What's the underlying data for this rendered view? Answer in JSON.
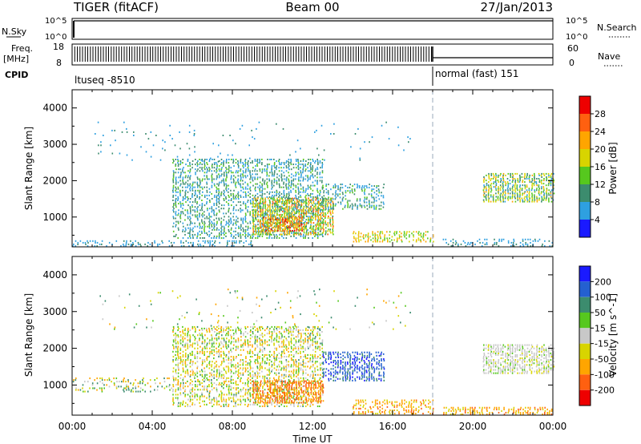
{
  "header": {
    "radar": "TIGER (fitACF)",
    "beam": "Beam 00",
    "date": "27/Jan/2013"
  },
  "top_panels": {
    "nsky_label": "N.Sky",
    "nsky_ticks": [
      "10^5",
      "10^0"
    ],
    "nsearch_label": "N.Search",
    "nsearch_ticks": [
      "10^5",
      "10^0"
    ],
    "freq_label": "Freq.",
    "freq_unit": "[MHz]",
    "freq_ticks": [
      "18",
      "8"
    ],
    "nave_label": "Nave",
    "nave_ticks": [
      "60",
      "0"
    ],
    "cpid_label": "CPID",
    "cpid_segments": [
      {
        "label": "ltuseq -8510",
        "start_hour": 0,
        "end_hour": 18.0
      },
      {
        "label": "normal (fast) 151",
        "start_hour": 18.0,
        "end_hour": 24
      }
    ]
  },
  "x_axis": {
    "label": "Time UT",
    "ticks": [
      "00:00",
      "04:00",
      "08:00",
      "12:00",
      "16:00",
      "20:00",
      "00:00"
    ],
    "range_hours": [
      0,
      24
    ]
  },
  "y_axis": {
    "label": "Slant Range [km]",
    "ticks": [
      "1000",
      "2000",
      "3000",
      "4000"
    ],
    "range_km": [
      180,
      4500
    ]
  },
  "power_colorbar": {
    "label": "Power [dB]",
    "ticks": [
      "4",
      "8",
      "12",
      "16",
      "20",
      "24",
      "28"
    ],
    "colors": [
      "#1a1aff",
      "#2ea0e0",
      "#3c8c6e",
      "#56c81e",
      "#d8d400",
      "#ffa500",
      "#ff6010",
      "#ee0000"
    ]
  },
  "velocity_colorbar": {
    "label": "Velocity [m s^-1]",
    "ticks": [
      "200",
      "100",
      "50",
      "15",
      "-15",
      "-50",
      "-100",
      "-200"
    ],
    "colors": [
      "#1a1aff",
      "#2460d0",
      "#3c8c6e",
      "#56c81e",
      "#c8c8c8",
      "#d8d400",
      "#ffa500",
      "#ff6010",
      "#ee0000"
    ]
  },
  "chart_data": [
    {
      "type": "heatmap",
      "name": "Power",
      "x_unit": "hours UT",
      "y_unit": "km",
      "scatter_regions": [
        {
          "t": [
            5.0,
            12.5
          ],
          "r": [
            400,
            2600
          ],
          "density": 0.55,
          "level": [
            4,
            14
          ]
        },
        {
          "t": [
            9.0,
            13.0
          ],
          "r": [
            500,
            1500
          ],
          "density": 0.8,
          "level": [
            10,
            26
          ]
        },
        {
          "t": [
            9.5,
            11.5
          ],
          "r": [
            600,
            1000
          ],
          "density": 0.85,
          "level": [
            18,
            30
          ]
        },
        {
          "t": [
            12.5,
            15.5
          ],
          "r": [
            1200,
            1900
          ],
          "density": 0.5,
          "level": [
            4,
            14
          ]
        },
        {
          "t": [
            14.0,
            18.0
          ],
          "r": [
            300,
            600
          ],
          "density": 0.5,
          "level": [
            12,
            24
          ]
        },
        {
          "t": [
            0.0,
            9.0
          ],
          "r": [
            180,
            350
          ],
          "density": 0.4,
          "level": [
            4,
            10
          ]
        },
        {
          "t": [
            20.5,
            24.0
          ],
          "r": [
            1400,
            2200
          ],
          "density": 0.75,
          "level": [
            6,
            22
          ]
        },
        {
          "t": [
            18.5,
            24.0
          ],
          "r": [
            180,
            400
          ],
          "density": 0.4,
          "level": [
            4,
            10
          ]
        },
        {
          "t": [
            1.0,
            17.0
          ],
          "r": [
            2500,
            3600
          ],
          "density": 0.03,
          "level": [
            4,
            10
          ]
        }
      ]
    },
    {
      "type": "heatmap",
      "name": "Velocity",
      "x_unit": "hours UT",
      "y_unit": "km",
      "scatter_regions": [
        {
          "t": [
            0.0,
            5.0
          ],
          "r": [
            800,
            1200
          ],
          "density": 0.25,
          "level": [
            -100,
            100
          ]
        },
        {
          "t": [
            5.0,
            12.5
          ],
          "r": [
            400,
            2600
          ],
          "density": 0.55,
          "level": [
            -80,
            60
          ]
        },
        {
          "t": [
            9.0,
            12.5
          ],
          "r": [
            500,
            1100
          ],
          "density": 0.75,
          "level": [
            -200,
            -40
          ]
        },
        {
          "t": [
            12.5,
            15.5
          ],
          "r": [
            1100,
            1900
          ],
          "density": 0.6,
          "level": [
            60,
            250
          ]
        },
        {
          "t": [
            14.0,
            18.0
          ],
          "r": [
            200,
            600
          ],
          "density": 0.5,
          "level": [
            -120,
            -20
          ]
        },
        {
          "t": [
            20.5,
            24.0
          ],
          "r": [
            1300,
            2100
          ],
          "density": 0.7,
          "level": [
            -20,
            20
          ]
        },
        {
          "t": [
            18.5,
            24.0
          ],
          "r": [
            180,
            400
          ],
          "density": 0.5,
          "level": [
            -120,
            -20
          ]
        },
        {
          "t": [
            1.0,
            17.0
          ],
          "r": [
            2500,
            3600
          ],
          "density": 0.03,
          "level": [
            -100,
            100
          ]
        }
      ]
    }
  ]
}
